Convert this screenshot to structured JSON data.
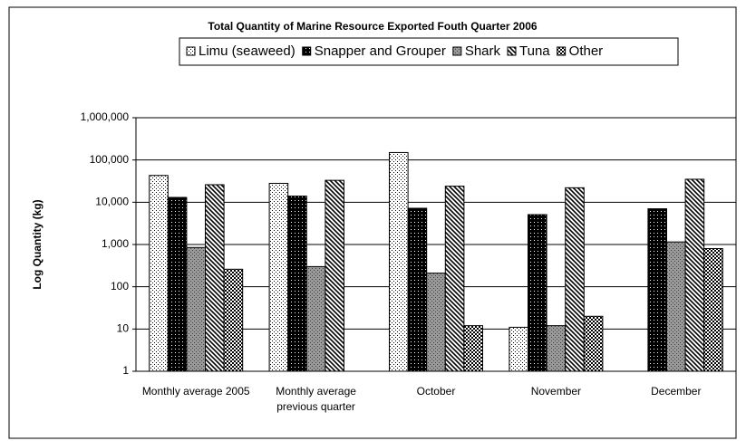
{
  "chart_data": {
    "type": "bar",
    "title": "Total Quantity of Marine Resource Exported Fouth Quarter 2006",
    "y_label": "Log Quantity (kg)",
    "categories": [
      "Monthly average 2005",
      "Monthly average previous quarter",
      "October",
      "November",
      "December"
    ],
    "series": [
      {
        "name": "Limu (seaweed)",
        "color": "#ffffff",
        "values": [
          43000,
          28000,
          150000,
          11,
          null
        ]
      },
      {
        "name": "Snapper and Grouper",
        "color": "#000000",
        "values": [
          13000,
          14000,
          7200,
          5100,
          7000
        ]
      },
      {
        "name": "Shark",
        "color": "#999999",
        "values": [
          850,
          300,
          210,
          12,
          1150
        ]
      },
      {
        "name": "Tuna",
        "color": "#d9d9d9",
        "values": [
          26000,
          33000,
          24000,
          22000,
          35000
        ]
      },
      {
        "name": "Other",
        "color": "#bfbfbf",
        "values": [
          260,
          null,
          12,
          20,
          800
        ]
      }
    ],
    "log_scale": true,
    "ylim": [
      1,
      1000000
    ],
    "yticks": [
      1,
      10,
      100,
      {
        "value": 1000,
        "label": "1,000"
      },
      {
        "value": 10000,
        "label": "10,000"
      },
      {
        "value": 100000,
        "label": "100,000"
      },
      {
        "value": 1000000,
        "label": "1,000,000"
      }
    ],
    "grid": true,
    "legend": "top"
  }
}
